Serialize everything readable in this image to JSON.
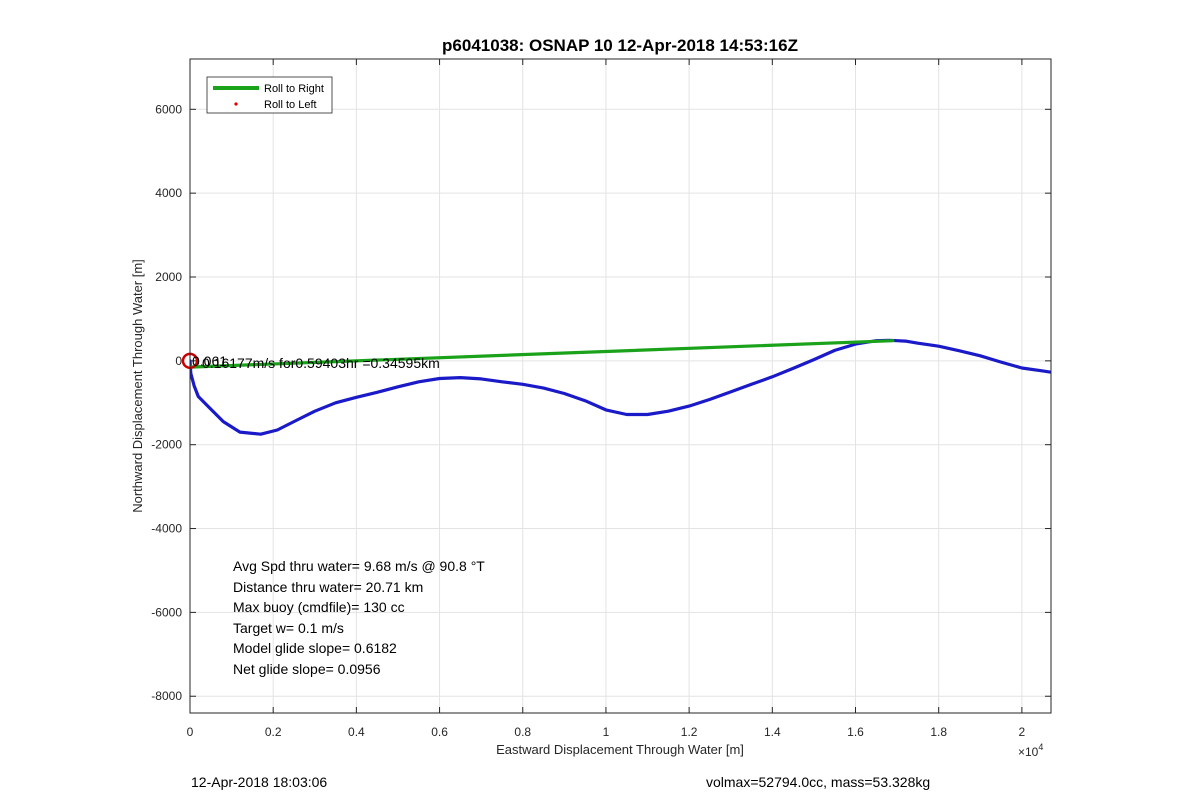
{
  "chart_data": {
    "type": "line",
    "title": "p6041038: OSNAP 10 12-Apr-2018 14:53:16Z",
    "xlabel": "Eastward Displacement Through Water [m]",
    "ylabel": "Northward Displacement Through Water [m]",
    "x_exponent_label": "×10",
    "x_exponent_power": "4",
    "xlim": [
      0,
      20700
    ],
    "ylim": [
      -8400,
      7200
    ],
    "xticks": [
      0,
      2000,
      4000,
      6000,
      8000,
      10000,
      12000,
      14000,
      16000,
      18000,
      20000
    ],
    "xtick_labels": [
      "0",
      "0.2",
      "0.4",
      "0.6",
      "0.8",
      "1",
      "1.2",
      "1.4",
      "1.6",
      "1.8",
      "2"
    ],
    "yticks": [
      -8000,
      -6000,
      -4000,
      -2000,
      0,
      2000,
      4000,
      6000
    ],
    "ytick_labels": [
      "-8000",
      "-6000",
      "-4000",
      "-2000",
      "0",
      "2000",
      "4000",
      "6000"
    ],
    "grid": true,
    "legend_position": "top-left",
    "legend": [
      {
        "label": "Roll to Right",
        "style": "line",
        "color": "#1aa21a"
      },
      {
        "label": "Roll to Left",
        "style": "dot",
        "color": "#e60000"
      }
    ],
    "series": [
      {
        "color": "#1a1ac8",
        "x": [
          0,
          20,
          100,
          200,
          500,
          800,
          1200,
          1700,
          2100,
          2600,
          3000,
          3500,
          4000,
          4500,
          5000,
          5500,
          6000,
          6500,
          7000,
          7500,
          8000,
          8500,
          9000,
          9500,
          10000,
          10500,
          11000,
          11500,
          12000,
          12500,
          13000,
          13500,
          14000,
          14500,
          15000,
          15500,
          16000,
          16500,
          16800,
          17000,
          17200,
          17500,
          18000,
          18500,
          19000,
          19500,
          20000,
          20500,
          20700
        ],
        "y": [
          0,
          -300,
          -600,
          -850,
          -1150,
          -1450,
          -1700,
          -1750,
          -1650,
          -1400,
          -1200,
          -1000,
          -870,
          -750,
          -620,
          -500,
          -420,
          -400,
          -430,
          -500,
          -560,
          -650,
          -780,
          -950,
          -1170,
          -1280,
          -1280,
          -1200,
          -1080,
          -920,
          -740,
          -560,
          -380,
          -180,
          30,
          250,
          400,
          480,
          490,
          480,
          470,
          420,
          350,
          240,
          120,
          -30,
          -170,
          -240,
          -270
        ]
      },
      {
        "color": "#1aa21a",
        "x": [
          0,
          16900
        ],
        "y": [
          -150,
          480
        ]
      }
    ],
    "start_marker": {
      "x": 0,
      "y": 0,
      "color": "#cc0000"
    },
    "overlay_labels": [
      "0.061",
      "0.16177m/s for0.59403hr =0.34595km"
    ],
    "stats_lines": [
      "Avg Spd thru water=  9.68 m/s @  90.8 °T",
      "Distance thru water= 20.71 km",
      "Max buoy (cmdfile)= 130 cc",
      "Target w= 0.1 m/s",
      "Model glide slope= 0.6182",
      "Net glide slope= 0.0956"
    ]
  },
  "footer": {
    "date": "12-Apr-2018 18:03:06",
    "stats": "volmax=52794.0cc, mass=53.328kg"
  }
}
